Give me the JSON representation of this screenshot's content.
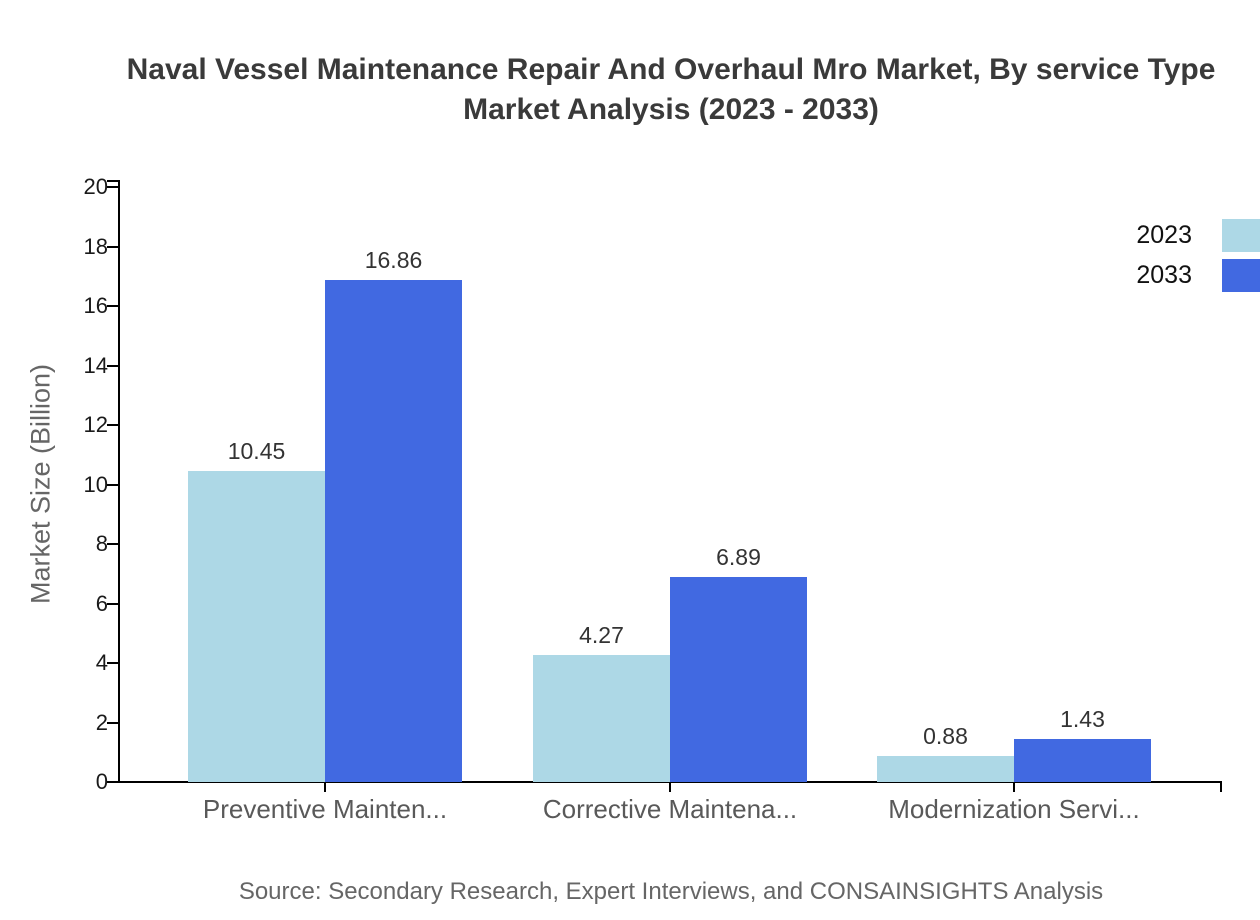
{
  "title": {
    "line1": "Naval Vessel Maintenance Repair And Overhaul Mro Market, By service Type",
    "line2": "Market Analysis (2023 - 2033)"
  },
  "source": "Source: Secondary Research, Expert Interviews, and CONSAINSIGHTS Analysis",
  "colors": {
    "series_2023": "#ADD8E6",
    "series_2033": "#4169E1",
    "axis": "#000000",
    "title_text": "#3a3a3a",
    "muted_text": "#666666",
    "value_label_text": "#333333"
  },
  "chart_data": {
    "type": "bar",
    "title": "Naval Vessel Maintenance Repair And Overhaul Mro Market, By service Type Market Analysis (2023 - 2033)",
    "categories": [
      "Preventive Mainten...",
      "Corrective Maintena...",
      "Modernization Servi..."
    ],
    "series": [
      {
        "name": "2023",
        "color": "#ADD8E6",
        "values": [
          10.45,
          4.27,
          0.88
        ]
      },
      {
        "name": "2033",
        "color": "#4169E1",
        "values": [
          16.86,
          6.89,
          1.43
        ]
      }
    ],
    "value_labels": [
      [
        "10.45",
        "4.27",
        "0.88"
      ],
      [
        "16.86",
        "6.89",
        "1.43"
      ]
    ],
    "xlabel": "",
    "ylabel": "Market Size (Billion)",
    "ylim": [
      0,
      20
    ],
    "yticks": [
      0,
      2,
      4,
      6,
      8,
      10,
      12,
      14,
      16,
      18,
      20
    ],
    "grid": false,
    "legend_position": "upper-right-outside"
  }
}
